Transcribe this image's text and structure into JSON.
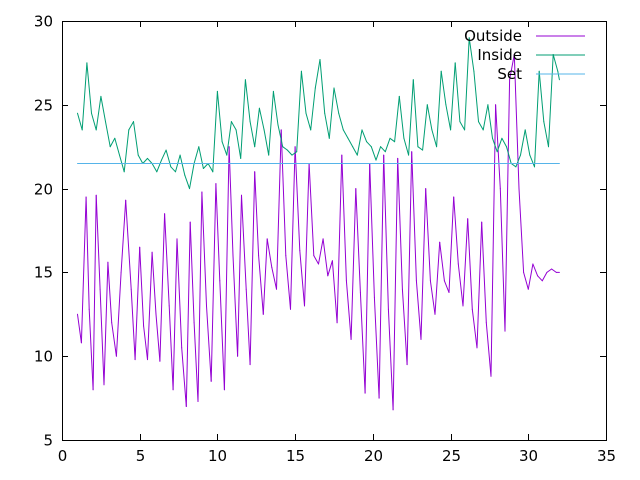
{
  "chart_data": {
    "type": "line",
    "title": "",
    "xlabel": "",
    "ylabel": "",
    "xlim": [
      0,
      35
    ],
    "ylim": [
      5,
      30
    ],
    "xticks": [
      0,
      5,
      10,
      15,
      20,
      25,
      30,
      35
    ],
    "yticks": [
      5,
      10,
      15,
      20,
      25,
      30
    ],
    "xtick_labels": [
      "0",
      "5",
      "10",
      "15",
      "20",
      "25",
      "30",
      "35"
    ],
    "ytick_labels": [
      "5",
      "10",
      "15",
      "20",
      "25",
      "30"
    ],
    "grid": false,
    "legend_position": "top-right",
    "series": [
      {
        "name": "Outside",
        "color": "#9400d3",
        "x": [
          1.0,
          1.25,
          1.55,
          1.75,
          2.0,
          2.2,
          2.45,
          2.7,
          2.95,
          3.2,
          3.5,
          3.8,
          4.1,
          4.45,
          4.7,
          5.0,
          5.25,
          5.5,
          5.8,
          6.05,
          6.3,
          6.6,
          6.9,
          7.15,
          7.4,
          7.7,
          8.0,
          8.25,
          8.5,
          8.75,
          9.0,
          9.3,
          9.6,
          9.9,
          10.15,
          10.45,
          10.75,
          11.0,
          11.3,
          11.55,
          11.85,
          12.1,
          12.4,
          12.65,
          12.95,
          13.2,
          13.5,
          13.8,
          14.1,
          14.4,
          14.7,
          15.0,
          15.3,
          15.6,
          15.9,
          16.2,
          16.5,
          16.8,
          17.1,
          17.4,
          17.7,
          18.0,
          18.3,
          18.6,
          18.9,
          19.2,
          19.5,
          19.8,
          20.1,
          20.4,
          20.7,
          21.0,
          21.3,
          21.6,
          21.9,
          22.2,
          22.5,
          22.8,
          23.1,
          23.4,
          23.7,
          24.0,
          24.3,
          24.6,
          24.9,
          25.2,
          25.5,
          25.8,
          26.1,
          26.4,
          26.7,
          27.0,
          27.3,
          27.6,
          27.9,
          28.2,
          28.5,
          28.8,
          29.1,
          29.4,
          29.7,
          30.0,
          30.3,
          30.6,
          30.9,
          31.2,
          31.5,
          31.8,
          32.0
        ],
        "values": [
          12.5,
          10.8,
          19.5,
          12.8,
          8.0,
          19.6,
          14.0,
          8.3,
          15.6,
          12.0,
          10.0,
          15.0,
          19.3,
          14.0,
          9.8,
          16.5,
          11.8,
          9.8,
          16.2,
          12.5,
          9.7,
          18.5,
          13.0,
          8.0,
          17.0,
          10.5,
          7.0,
          18.0,
          12.0,
          7.3,
          19.8,
          13.0,
          8.5,
          20.3,
          14.5,
          8.0,
          22.5,
          16.0,
          10.0,
          19.6,
          14.0,
          9.5,
          21.0,
          16.0,
          12.5,
          17.0,
          15.3,
          14.0,
          23.5,
          16.0,
          12.8,
          22.5,
          16.3,
          13.0,
          21.5,
          16.0,
          15.5,
          17.0,
          14.8,
          15.7,
          12.0,
          22.0,
          14.5,
          11.0,
          20.0,
          13.8,
          7.8,
          21.5,
          13.5,
          7.5,
          22.0,
          12.8,
          6.8,
          21.8,
          14.0,
          9.5,
          22.2,
          14.5,
          11.0,
          20.0,
          14.5,
          12.5,
          16.8,
          14.5,
          13.8,
          19.5,
          15.5,
          13.0,
          18.2,
          12.8,
          10.5,
          18.0,
          12.0,
          8.8,
          25.0,
          20.0,
          11.5,
          26.5,
          28.0,
          20.0,
          15.0,
          14.0,
          15.5,
          14.8,
          14.5,
          15.0,
          15.2,
          15.0,
          15.0
        ]
      },
      {
        "name": "Inside",
        "color": "#009e73",
        "x": [
          1.0,
          1.3,
          1.6,
          1.9,
          2.2,
          2.5,
          2.8,
          3.1,
          3.4,
          3.7,
          4.0,
          4.3,
          4.6,
          4.9,
          5.2,
          5.5,
          5.8,
          6.1,
          6.4,
          6.7,
          7.0,
          7.3,
          7.6,
          7.9,
          8.2,
          8.5,
          8.8,
          9.1,
          9.4,
          9.7,
          10.0,
          10.3,
          10.6,
          10.9,
          11.2,
          11.5,
          11.8,
          12.1,
          12.4,
          12.7,
          13.0,
          13.3,
          13.6,
          13.9,
          14.2,
          14.5,
          14.8,
          15.1,
          15.4,
          15.7,
          16.0,
          16.3,
          16.6,
          16.9,
          17.2,
          17.5,
          17.8,
          18.1,
          18.4,
          18.7,
          19.0,
          19.3,
          19.6,
          19.9,
          20.2,
          20.5,
          20.8,
          21.1,
          21.4,
          21.7,
          22.0,
          22.3,
          22.6,
          22.9,
          23.2,
          23.5,
          23.8,
          24.1,
          24.4,
          24.7,
          25.0,
          25.3,
          25.6,
          25.9,
          26.2,
          26.5,
          26.8,
          27.1,
          27.4,
          27.7,
          28.0,
          28.3,
          28.6,
          28.9,
          29.2,
          29.5,
          29.8,
          30.1,
          30.4,
          30.7,
          31.0,
          31.3,
          31.6,
          31.9,
          32.0
        ],
        "values": [
          24.5,
          23.5,
          27.5,
          24.5,
          23.5,
          25.5,
          24.0,
          22.5,
          23.0,
          22.0,
          21.0,
          23.5,
          24.0,
          22.0,
          21.5,
          21.8,
          21.5,
          21.0,
          21.7,
          22.3,
          21.3,
          21.0,
          22.0,
          20.8,
          20.0,
          21.5,
          22.5,
          21.2,
          21.5,
          21.0,
          25.8,
          22.8,
          22.0,
          24.0,
          23.5,
          21.8,
          26.5,
          24.0,
          22.5,
          24.8,
          23.5,
          22.0,
          25.8,
          23.8,
          22.5,
          22.3,
          22.0,
          22.2,
          27.0,
          24.5,
          23.5,
          26.0,
          27.7,
          24.5,
          23.0,
          26.0,
          24.5,
          23.5,
          23.0,
          22.5,
          22.0,
          23.5,
          22.8,
          22.5,
          21.7,
          22.5,
          22.2,
          23.0,
          22.8,
          25.5,
          23.0,
          22.0,
          26.5,
          22.5,
          22.3,
          25.0,
          23.5,
          22.5,
          27.0,
          25.0,
          23.5,
          27.5,
          24.0,
          23.5,
          29.0,
          27.0,
          24.0,
          23.5,
          25.0,
          23.0,
          22.2,
          23.0,
          22.5,
          21.5,
          21.3,
          22.0,
          23.5,
          22.0,
          21.3,
          27.0,
          24.0,
          22.5,
          28.0,
          27.0,
          26.5
        ]
      },
      {
        "name": "Set",
        "color": "#56b4e9",
        "x": [
          1,
          32
        ],
        "values": [
          21.5,
          21.5
        ]
      }
    ]
  }
}
